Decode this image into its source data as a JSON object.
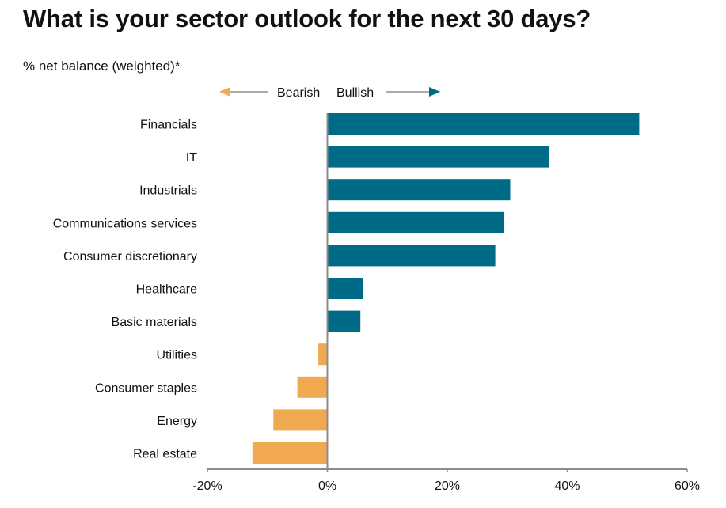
{
  "chart_data": {
    "type": "bar",
    "orientation": "horizontal",
    "title": "What is your sector outlook for the next 30 days?",
    "subtitle": "% net balance (weighted)*",
    "categories": [
      "Financials",
      "IT",
      "Industrials",
      "Communications services",
      "Consumer discretionary",
      "Healthcare",
      "Basic materials",
      "Utilities",
      "Consumer staples",
      "Energy",
      "Real estate"
    ],
    "values": [
      52,
      37,
      30.5,
      29.5,
      28,
      6,
      5.5,
      -1.5,
      -5,
      -9,
      -12.5
    ],
    "xlim": [
      -20,
      60
    ],
    "xticks": [
      -20,
      0,
      20,
      40,
      60
    ],
    "xtick_labels": [
      "-20%",
      "0%",
      "20%",
      "40%",
      "60%"
    ],
    "grid": false,
    "legend": {
      "negative_label": "Bearish",
      "positive_label": "Bullish",
      "placement": "top-center"
    },
    "colors": {
      "positive": "#006b87",
      "negative": "#f0a950",
      "axis": "#8c8c8c"
    }
  }
}
